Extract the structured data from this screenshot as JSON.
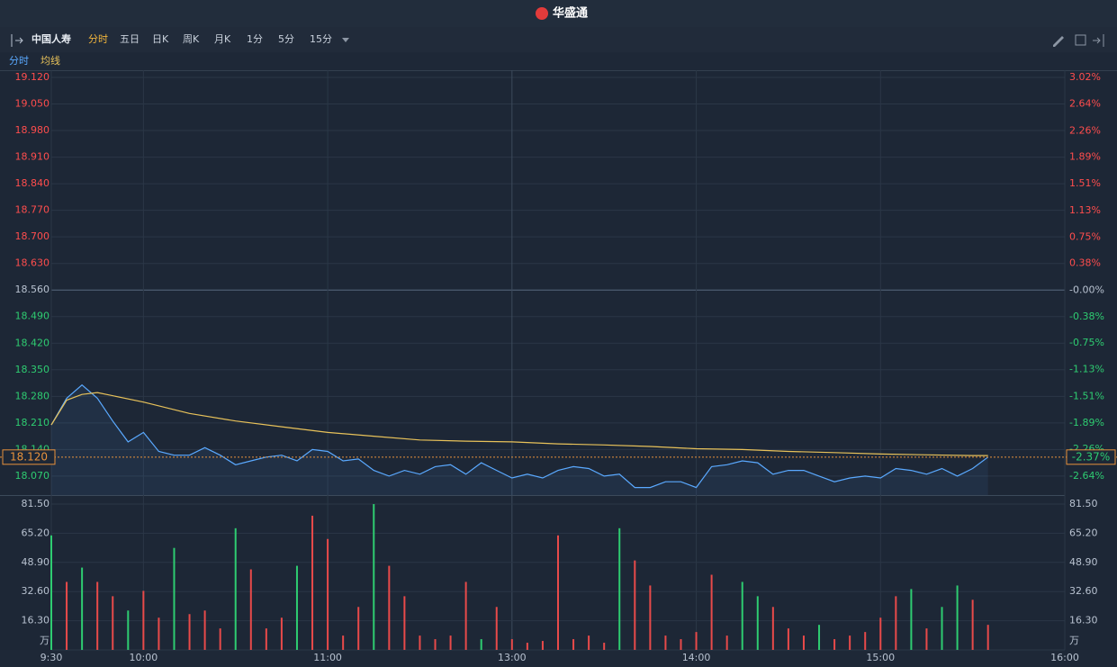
{
  "header": {
    "logo": "华盛通"
  },
  "toolbar": {
    "stock": "中国人寿",
    "tabs": [
      "分时",
      "五日",
      "日K",
      "周K",
      "月K",
      "1分",
      "5分",
      "15分"
    ]
  },
  "chart_data": [
    {
      "type": "line",
      "series": [
        {
          "name": "分时",
          "color": "#5aa9ff",
          "x": [
            0,
            5,
            10,
            15,
            20,
            25,
            30,
            35,
            40,
            45,
            50,
            55,
            60,
            65,
            70,
            75,
            80,
            85,
            90,
            95,
            100,
            105,
            110,
            115,
            120,
            125,
            130,
            135,
            140,
            145,
            150,
            155,
            160,
            165,
            170,
            175,
            180,
            185,
            190,
            195,
            200,
            205,
            210,
            215,
            220,
            225,
            230,
            235,
            240,
            245,
            250,
            255,
            260,
            265,
            270,
            275,
            280,
            285,
            290,
            295,
            300,
            305
          ],
          "values": [
            18.205,
            18.275,
            18.31,
            18.275,
            18.215,
            18.16,
            18.185,
            18.135,
            18.125,
            18.125,
            18.145,
            18.125,
            18.1,
            18.11,
            18.12,
            18.125,
            18.11,
            18.14,
            18.135,
            18.11,
            18.115,
            18.085,
            18.07,
            18.085,
            18.075,
            18.095,
            18.1,
            18.075,
            18.105,
            18.085,
            18.065,
            18.075,
            18.065,
            18.085,
            18.095,
            18.09,
            18.07,
            18.075,
            18.04,
            18.04,
            18.055,
            18.055,
            18.04,
            18.095,
            18.1,
            18.11,
            18.105,
            18.075,
            18.085,
            18.085,
            18.07,
            18.055,
            18.065,
            18.07,
            18.065,
            18.09,
            18.085,
            18.075,
            18.09,
            18.07,
            18.09,
            18.12
          ]
        },
        {
          "name": "均线",
          "color": "#e8c25a",
          "x": [
            0,
            5,
            10,
            15,
            30,
            45,
            60,
            75,
            90,
            105,
            120,
            135,
            150,
            165,
            180,
            195,
            210,
            225,
            240,
            255,
            270,
            285,
            300,
            305
          ],
          "values": [
            18.205,
            18.27,
            18.285,
            18.29,
            18.265,
            18.235,
            18.215,
            18.2,
            18.185,
            18.175,
            18.165,
            18.162,
            18.16,
            18.155,
            18.152,
            18.148,
            18.142,
            18.14,
            18.135,
            18.132,
            18.128,
            18.126,
            18.124,
            18.124
          ]
        }
      ],
      "ylim": [
        18.02,
        19.12
      ],
      "yticks": [
        {
          "value": 19.12,
          "label": "19.120"
        },
        {
          "value": 19.05,
          "label": "19.050"
        },
        {
          "value": 18.98,
          "label": "18.980"
        },
        {
          "value": 18.91,
          "label": "18.910"
        },
        {
          "value": 18.84,
          "label": "18.840"
        },
        {
          "value": 18.77,
          "label": "18.770"
        },
        {
          "value": 18.7,
          "label": "18.700"
        },
        {
          "value": 18.63,
          "label": "18.630"
        },
        {
          "value": 18.56,
          "label": "18.560"
        },
        {
          "value": 18.49,
          "label": "18.490"
        },
        {
          "value": 18.42,
          "label": "18.420"
        },
        {
          "value": 18.35,
          "label": "18.350"
        },
        {
          "value": 18.28,
          "label": "18.280"
        },
        {
          "value": 18.21,
          "label": "18.210"
        },
        {
          "value": 18.14,
          "label": "18.140"
        },
        {
          "value": 18.07,
          "label": "18.070"
        }
      ],
      "y2lim": [
        -2.91,
        3.02
      ],
      "y2ticks": [
        {
          "value": 3.02,
          "label": "3.02%"
        },
        {
          "value": 2.64,
          "label": "2.64%"
        },
        {
          "value": 2.26,
          "label": "2.26%"
        },
        {
          "value": 1.89,
          "label": "1.89%"
        },
        {
          "value": 1.51,
          "label": "1.51%"
        },
        {
          "value": 1.13,
          "label": "1.13%"
        },
        {
          "value": 0.75,
          "label": "0.75%"
        },
        {
          "value": 0.38,
          "label": "0.38%"
        },
        {
          "value": 0,
          "label": "-0.00%"
        },
        {
          "value": -0.38,
          "label": "-0.38%"
        },
        {
          "value": -0.75,
          "label": "-0.75%"
        },
        {
          "value": -1.13,
          "label": "-1.13%"
        },
        {
          "value": -1.51,
          "label": "-1.51%"
        },
        {
          "value": -1.89,
          "label": "-1.89%"
        },
        {
          "value": -2.26,
          "label": "-2.26%"
        },
        {
          "value": -2.64,
          "label": "-2.64%"
        }
      ],
      "last_price": {
        "value": 18.12,
        "label": "18.120"
      },
      "last_change": {
        "value": -2.37,
        "label": "-2.37%"
      },
      "grid": true
    },
    {
      "type": "bar",
      "x": [
        0,
        5,
        10,
        15,
        20,
        25,
        30,
        35,
        40,
        45,
        50,
        55,
        60,
        65,
        70,
        75,
        80,
        85,
        90,
        95,
        100,
        105,
        110,
        115,
        120,
        125,
        130,
        135,
        140,
        145,
        150,
        155,
        160,
        165,
        170,
        175,
        180,
        185,
        190,
        195,
        200,
        205,
        210,
        215,
        220,
        225,
        230,
        235,
        240,
        245,
        250,
        255,
        260,
        265,
        270,
        275,
        280,
        285,
        290,
        295,
        300,
        305
      ],
      "values": [
        64,
        38,
        46,
        38,
        30,
        22,
        33,
        18,
        57,
        20,
        22,
        12,
        68,
        45,
        12,
        18,
        47,
        75,
        62,
        8,
        24,
        81.5,
        47,
        30,
        8,
        6,
        8,
        38,
        6,
        24,
        6,
        4,
        5,
        64,
        6,
        8,
        4,
        68,
        50,
        36,
        8,
        6,
        10,
        42,
        8,
        38,
        30,
        24,
        12,
        8,
        14,
        6,
        8,
        10,
        18,
        30,
        34,
        12,
        24,
        36,
        28,
        14
      ],
      "colors": [
        "#2ecc71",
        "#e84a4a",
        "#2ecc71",
        "#e84a4a",
        "#e84a4a",
        "#2ecc71",
        "#e84a4a",
        "#e84a4a",
        "#2ecc71",
        "#e84a4a",
        "#e84a4a",
        "#e84a4a",
        "#2ecc71",
        "#e84a4a",
        "#e84a4a",
        "#e84a4a",
        "#2ecc71",
        "#e84a4a",
        "#e84a4a",
        "#e84a4a",
        "#e84a4a",
        "#2ecc71",
        "#e84a4a",
        "#e84a4a",
        "#e84a4a",
        "#e84a4a",
        "#e84a4a",
        "#e84a4a",
        "#2ecc71",
        "#e84a4a",
        "#e84a4a",
        "#e84a4a",
        "#e84a4a",
        "#e84a4a",
        "#e84a4a",
        "#e84a4a",
        "#e84a4a",
        "#2ecc71",
        "#e84a4a",
        "#e84a4a",
        "#e84a4a",
        "#e84a4a",
        "#e84a4a",
        "#e84a4a",
        "#e84a4a",
        "#2ecc71",
        "#2ecc71",
        "#e84a4a",
        "#e84a4a",
        "#e84a4a",
        "#2ecc71",
        "#e84a4a",
        "#e84a4a",
        "#e84a4a",
        "#e84a4a",
        "#e84a4a",
        "#2ecc71",
        "#e84a4a",
        "#2ecc71",
        "#2ecc71",
        "#e84a4a",
        "#e84a4a"
      ],
      "ylim": [
        0,
        81.5
      ],
      "yticks": [
        {
          "value": 81.5,
          "label": "81.50"
        },
        {
          "value": 65.2,
          "label": "65.20"
        },
        {
          "value": 48.9,
          "label": "48.90"
        },
        {
          "value": 32.6,
          "label": "32.60"
        },
        {
          "value": 16.3,
          "label": "16.30"
        },
        {
          "value": 0,
          "label": "万"
        }
      ],
      "xlim": [
        0,
        330
      ],
      "xticks": [
        {
          "value": 0,
          "label": "9:30"
        },
        {
          "value": 30,
          "label": "10:00"
        },
        {
          "value": 90,
          "label": "11:00"
        },
        {
          "value": 150,
          "label": "13:00"
        },
        {
          "value": 210,
          "label": "14:00"
        },
        {
          "value": 270,
          "label": "15:00"
        },
        {
          "value": 330,
          "label": "16:00"
        }
      ]
    }
  ]
}
